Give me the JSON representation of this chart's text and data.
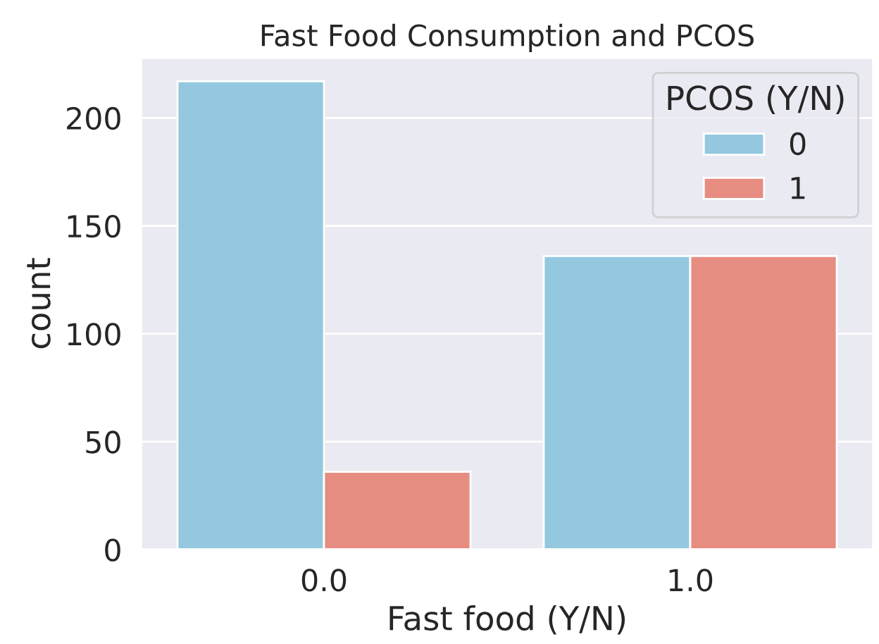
{
  "chart_data": {
    "type": "bar",
    "title": "Fast Food Consumption and PCOS",
    "xlabel": "Fast food (Y/N)",
    "ylabel": "count",
    "categories": [
      "0.0",
      "1.0"
    ],
    "series": [
      {
        "name": "0",
        "color": "#93c8de",
        "values": [
          217,
          136
        ]
      },
      {
        "name": "1",
        "color": "#e78c81",
        "values": [
          36,
          136
        ]
      }
    ],
    "legend_title": "PCOS (Y/N)",
    "legend": "top right",
    "ylim": [
      0,
      227.85
    ],
    "yticks": [
      0,
      50,
      100,
      150,
      200
    ],
    "grid": "y"
  }
}
